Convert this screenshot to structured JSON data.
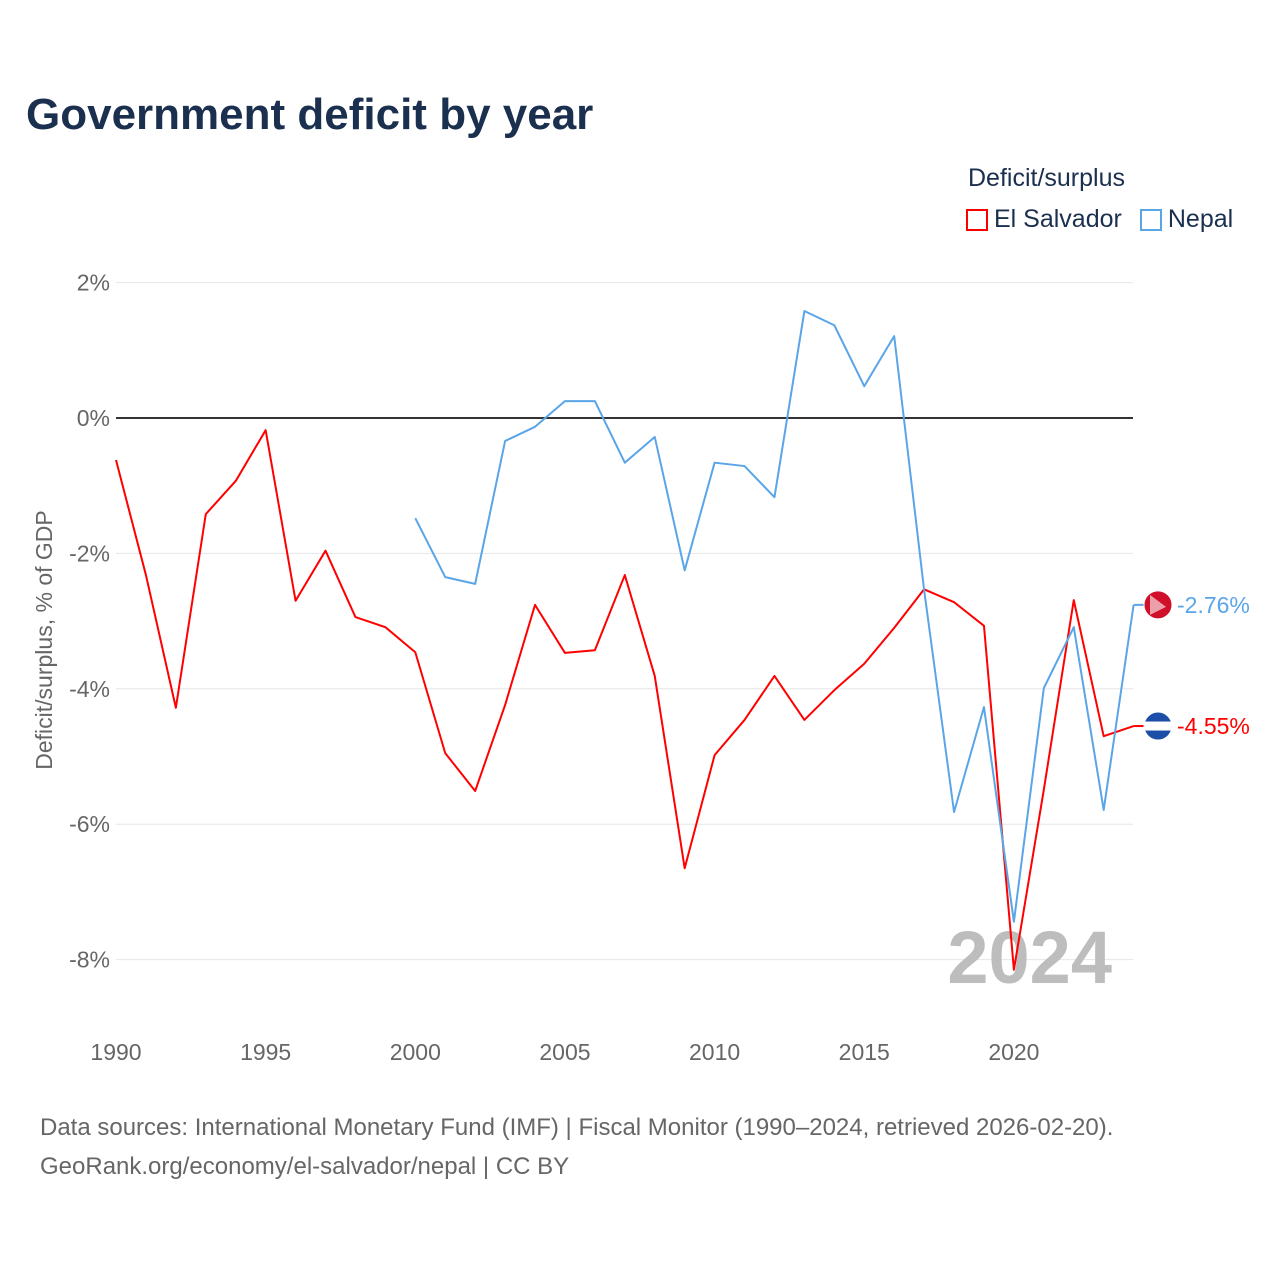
{
  "title": "Government deficit by year",
  "legend": {
    "title": "Deficit/surplus",
    "items": [
      {
        "name": "El Salvador",
        "color": "#ff0000"
      },
      {
        "name": "Nepal",
        "color": "#5aa5e8"
      }
    ]
  },
  "watermark_year": "2024",
  "source_line1": "Data sources: International Monetary Fund (IMF) | Fiscal Monitor (1990–2024, retrieved 2026-02-20).",
  "source_line2": "GeoRank.org/economy/el-salvador/nepal | CC BY",
  "chart_data": {
    "type": "line",
    "title": "Government deficit by year",
    "xlabel": "",
    "ylabel": "Deficit/surplus, % of GDP",
    "xlim": [
      1990,
      2024
    ],
    "ylim": [
      -9,
      2.5
    ],
    "xticks": [
      1990,
      1995,
      2000,
      2005,
      2010,
      2015,
      2020
    ],
    "yticks": [
      2,
      0,
      -2,
      -4,
      -6,
      -8
    ],
    "ytick_labels": [
      "2%",
      "0%",
      "-2%",
      "-4%",
      "-6%",
      "-8%"
    ],
    "grid": true,
    "legend_position": "top-right",
    "series": [
      {
        "name": "El Salvador",
        "color": "#ff0000",
        "end_label": "-4.55%",
        "x": [
          1990,
          1991,
          1992,
          1993,
          1994,
          1995,
          1996,
          1997,
          1998,
          1999,
          2000,
          2001,
          2002,
          2003,
          2004,
          2005,
          2006,
          2007,
          2008,
          2009,
          2010,
          2011,
          2012,
          2013,
          2014,
          2015,
          2016,
          2017,
          2018,
          2019,
          2020,
          2021,
          2022,
          2023,
          2024
        ],
        "values": [
          -0.62,
          -2.32,
          -4.28,
          -1.42,
          -0.93,
          -0.18,
          -2.7,
          -1.96,
          -2.94,
          -3.09,
          -3.46,
          -4.95,
          -5.51,
          -4.24,
          -2.76,
          -3.47,
          -3.43,
          -2.32,
          -3.81,
          -6.65,
          -4.98,
          -4.46,
          -3.81,
          -4.46,
          -4.02,
          -3.63,
          -3.1,
          -2.53,
          -2.72,
          -3.07,
          -8.15,
          -5.49,
          -2.69,
          -4.7,
          -4.55
        ]
      },
      {
        "name": "Nepal",
        "color": "#5aa5e8",
        "end_label": "-2.76%",
        "x": [
          2000,
          2001,
          2002,
          2003,
          2004,
          2005,
          2006,
          2007,
          2008,
          2009,
          2010,
          2011,
          2012,
          2013,
          2014,
          2015,
          2016,
          2017,
          2018,
          2019,
          2020,
          2021,
          2022,
          2023,
          2024
        ],
        "values": [
          -1.48,
          -2.35,
          -2.45,
          -0.34,
          -0.13,
          0.25,
          0.25,
          -0.66,
          -0.28,
          -2.25,
          -0.66,
          -0.71,
          -1.17,
          1.58,
          1.37,
          0.47,
          1.21,
          -2.54,
          -5.82,
          -4.27,
          -7.44,
          -3.99,
          -3.09,
          -5.79,
          -2.76
        ]
      }
    ]
  }
}
